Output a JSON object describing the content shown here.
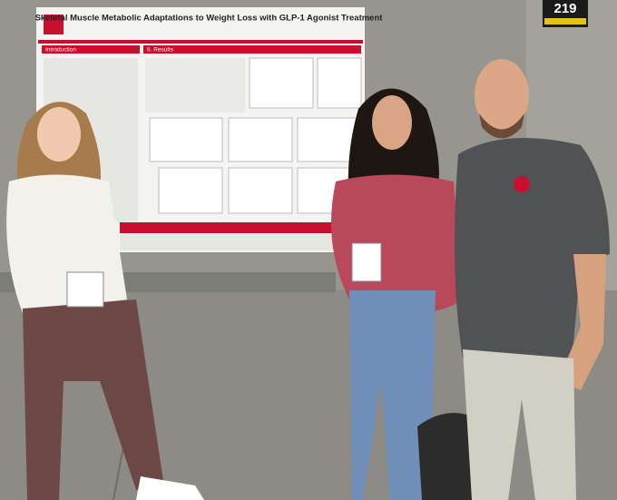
{
  "sign": {
    "number": "219"
  },
  "poster": {
    "title": "Skeletal Muscle Metabolic Adaptations to Weight Loss with GLP-1 Agonist Treatment",
    "sections": [
      "Introduction",
      "II. Results"
    ]
  }
}
